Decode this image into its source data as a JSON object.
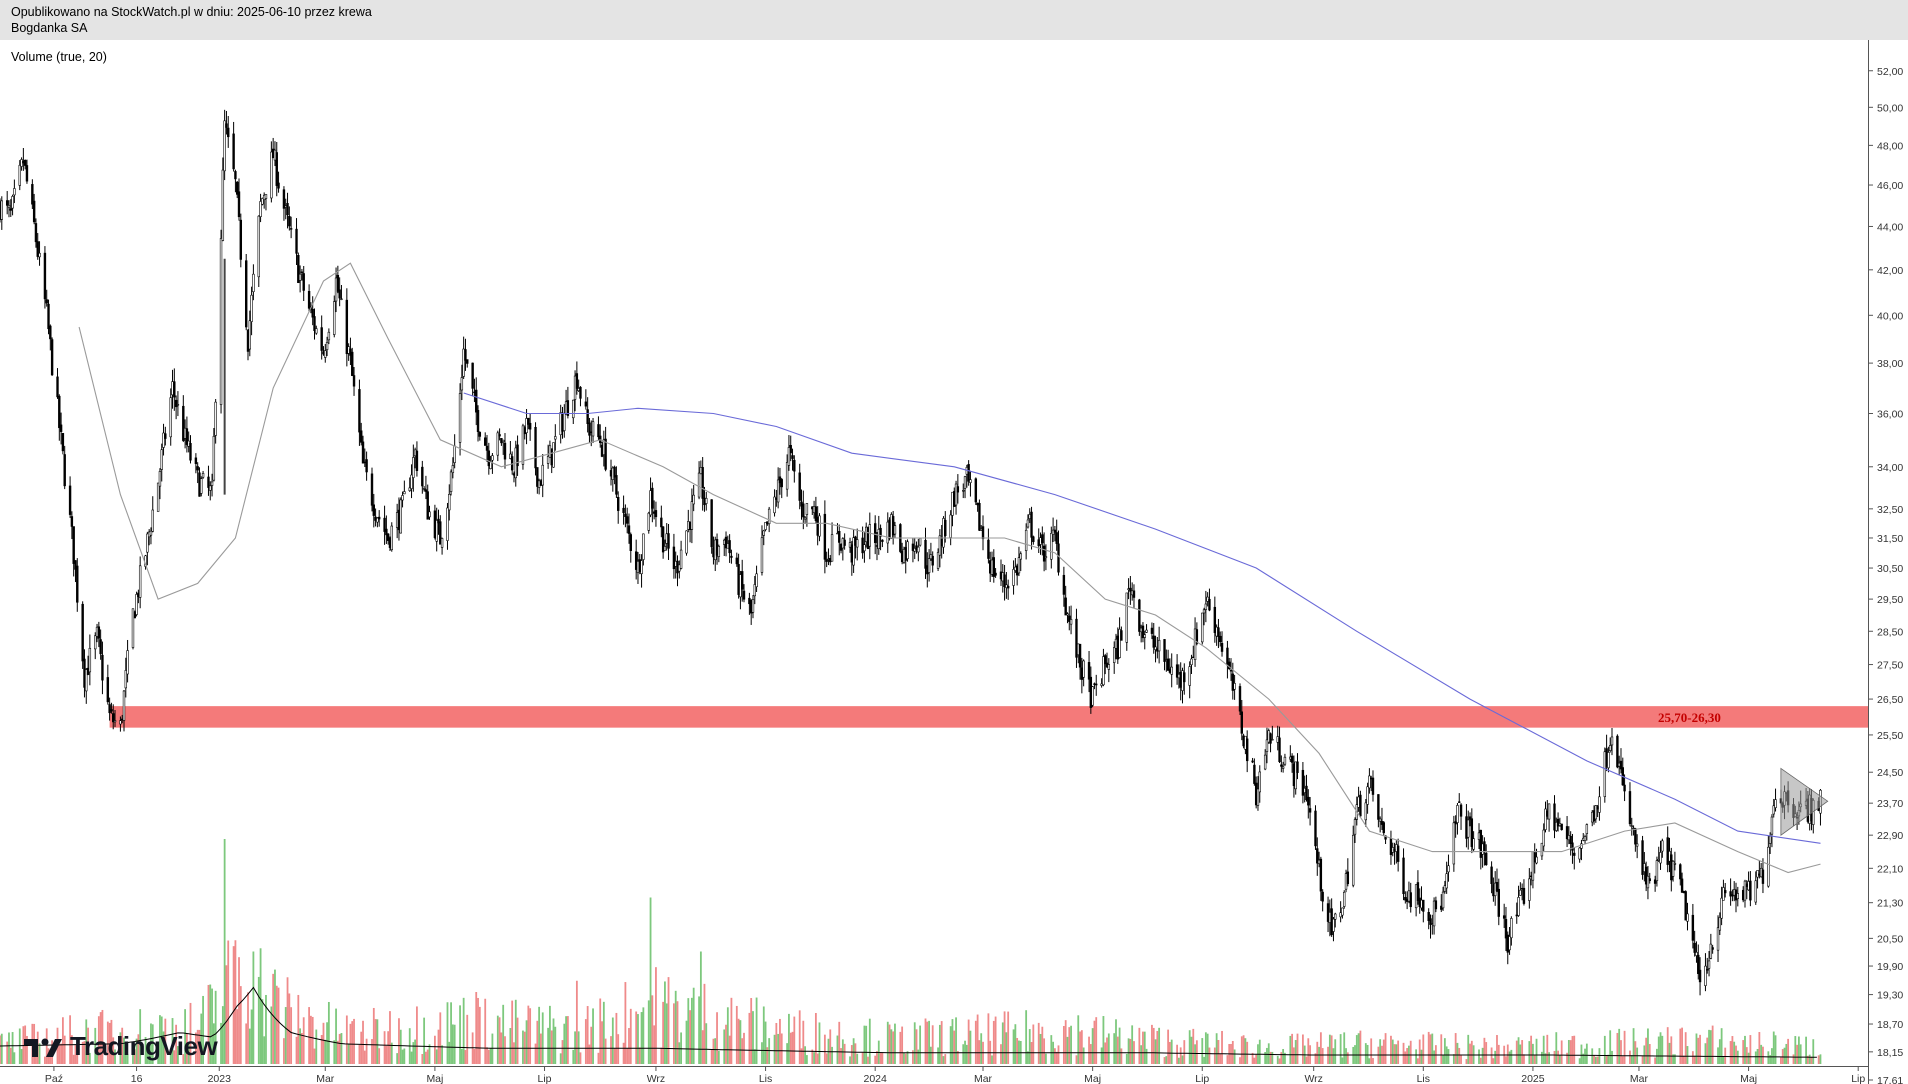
{
  "header": {
    "published": "Opublikowano na StockWatch.pl w dniu: 2025-06-10 przez krewa",
    "instrument": "Bogdanka SA"
  },
  "indicator_label": "Volume (true, 20)",
  "branding": {
    "logo_icon": "tradingview-logo-icon",
    "logo_text": "TradingView"
  },
  "colors": {
    "candle": "#000000",
    "ma_short": "#9a9a9a",
    "ma_long": "#6a6ad8",
    "zone": "#f47a7a",
    "zone_label": "#c40000",
    "vol_up": "#7dc87d",
    "vol_down": "#ef8a8a",
    "vol_ma": "#000000",
    "triangle": "#999999"
  },
  "chart_data": {
    "type": "candlestick",
    "scale": "log",
    "ylim": [
      17.61,
      53.0
    ],
    "y_ticks": [
      "52,00",
      "50,00",
      "48,00",
      "46,00",
      "44,00",
      "42,00",
      "40,00",
      "38,00",
      "36,00",
      "34,00",
      "32,50",
      "31,50",
      "30,50",
      "29,50",
      "28,50",
      "27,50",
      "26,50",
      "25,50",
      "24,50",
      "23,70",
      "22,90",
      "22,10",
      "21,30",
      "20,50",
      "19,90",
      "19,30",
      "18,70",
      "18,15",
      "17,61"
    ],
    "x_ticks": [
      "Paź",
      "16",
      "2023",
      "Mar",
      "Maj",
      "Lip",
      "Wrz",
      "Lis",
      "2024",
      "Mar",
      "Maj",
      "Lip",
      "Wrz",
      "Lis",
      "2025",
      "Mar",
      "Maj",
      "Lip"
    ],
    "x_range": [
      "2022-09-01",
      "2025-07-02"
    ],
    "price_path": [
      [
        "2022-09-01",
        45.0
      ],
      [
        "2022-09-07",
        44.5
      ],
      [
        "2022-09-14",
        47.2
      ],
      [
        "2022-09-20",
        44.0
      ],
      [
        "2022-09-27",
        40.0
      ],
      [
        "2022-10-04",
        35.5
      ],
      [
        "2022-10-12",
        31.0
      ],
      [
        "2022-10-18",
        27.2
      ],
      [
        "2022-10-25",
        28.3
      ],
      [
        "2022-11-01",
        26.0
      ],
      [
        "2022-11-07",
        25.7
      ],
      [
        "2022-11-14",
        29.0
      ],
      [
        "2022-11-21",
        31.0
      ],
      [
        "2022-11-28",
        33.5
      ],
      [
        "2022-12-06",
        37.0
      ],
      [
        "2022-12-13",
        35.0
      ],
      [
        "2022-12-20",
        33.5
      ],
      [
        "2022-12-28",
        33.0
      ],
      [
        "2023-01-04",
        49.0
      ],
      [
        "2023-01-10",
        46.0
      ],
      [
        "2023-01-17",
        39.0
      ],
      [
        "2023-01-24",
        45.0
      ],
      [
        "2023-01-31",
        47.5
      ],
      [
        "2023-02-07",
        44.5
      ],
      [
        "2023-02-14",
        42.0
      ],
      [
        "2023-02-21",
        40.0
      ],
      [
        "2023-02-28",
        38.5
      ],
      [
        "2023-03-07",
        41.5
      ],
      [
        "2023-03-15",
        38.0
      ],
      [
        "2023-03-22",
        34.0
      ],
      [
        "2023-03-29",
        32.5
      ],
      [
        "2023-04-05",
        31.5
      ],
      [
        "2023-04-13",
        32.5
      ],
      [
        "2023-04-20",
        34.5
      ],
      [
        "2023-04-27",
        32.5
      ],
      [
        "2023-05-04",
        31.5
      ],
      [
        "2023-05-11",
        34.0
      ],
      [
        "2023-05-17",
        38.5
      ],
      [
        "2023-05-24",
        36.0
      ],
      [
        "2023-05-31",
        34.5
      ],
      [
        "2023-06-07",
        35.0
      ],
      [
        "2023-06-14",
        34.0
      ],
      [
        "2023-06-21",
        35.5
      ],
      [
        "2023-06-28",
        33.5
      ],
      [
        "2023-07-05",
        34.5
      ],
      [
        "2023-07-12",
        36.0
      ],
      [
        "2023-07-19",
        37.5
      ],
      [
        "2023-07-25",
        35.5
      ],
      [
        "2023-08-01",
        35.0
      ],
      [
        "2023-08-08",
        33.5
      ],
      [
        "2023-08-15",
        32.0
      ],
      [
        "2023-08-22",
        30.5
      ],
      [
        "2023-08-29",
        33.0
      ],
      [
        "2023-09-05",
        31.5
      ],
      [
        "2023-09-12",
        30.5
      ],
      [
        "2023-09-19",
        32.0
      ],
      [
        "2023-09-26",
        33.5
      ],
      [
        "2023-10-03",
        31.0
      ],
      [
        "2023-10-10",
        31.5
      ],
      [
        "2023-10-17",
        30.0
      ],
      [
        "2023-10-24",
        29.0
      ],
      [
        "2023-10-31",
        31.5
      ],
      [
        "2023-11-07",
        33.0
      ],
      [
        "2023-11-14",
        34.5
      ],
      [
        "2023-11-21",
        32.5
      ],
      [
        "2023-11-28",
        32.5
      ],
      [
        "2023-12-05",
        31.0
      ],
      [
        "2023-12-12",
        31.5
      ],
      [
        "2023-12-19",
        31.0
      ],
      [
        "2023-12-27",
        31.5
      ],
      [
        "2024-01-03",
        31.5
      ],
      [
        "2024-01-10",
        32.0
      ],
      [
        "2024-01-17",
        31.0
      ],
      [
        "2024-01-24",
        31.5
      ],
      [
        "2024-01-31",
        30.5
      ],
      [
        "2024-02-07",
        31.5
      ],
      [
        "2024-02-14",
        33.0
      ],
      [
        "2024-02-21",
        33.5
      ],
      [
        "2024-02-28",
        32.0
      ],
      [
        "2024-03-06",
        30.5
      ],
      [
        "2024-03-13",
        30.0
      ],
      [
        "2024-03-20",
        30.5
      ],
      [
        "2024-03-27",
        32.0
      ],
      [
        "2024-04-03",
        31.0
      ],
      [
        "2024-04-10",
        31.5
      ],
      [
        "2024-04-17",
        29.0
      ],
      [
        "2024-04-24",
        27.5
      ],
      [
        "2024-05-01",
        26.5
      ],
      [
        "2024-05-08",
        27.5
      ],
      [
        "2024-05-15",
        28.0
      ],
      [
        "2024-05-22",
        30.0
      ],
      [
        "2024-05-29",
        28.5
      ],
      [
        "2024-06-05",
        28.0
      ],
      [
        "2024-06-12",
        27.5
      ],
      [
        "2024-06-19",
        27.0
      ],
      [
        "2024-06-26",
        28.0
      ],
      [
        "2024-07-03",
        29.5
      ],
      [
        "2024-07-10",
        28.5
      ],
      [
        "2024-07-17",
        27.0
      ],
      [
        "2024-07-24",
        25.5
      ],
      [
        "2024-07-31",
        24.0
      ],
      [
        "2024-08-07",
        25.5
      ],
      [
        "2024-08-14",
        25.0
      ],
      [
        "2024-08-21",
        24.5
      ],
      [
        "2024-08-28",
        24.0
      ],
      [
        "2024-09-04",
        22.0
      ],
      [
        "2024-09-11",
        20.6
      ],
      [
        "2024-09-18",
        21.5
      ],
      [
        "2024-09-25",
        23.5
      ],
      [
        "2024-10-02",
        24.2
      ],
      [
        "2024-10-09",
        23.0
      ],
      [
        "2024-10-16",
        22.5
      ],
      [
        "2024-10-23",
        21.5
      ],
      [
        "2024-10-30",
        21.5
      ],
      [
        "2024-11-06",
        21.0
      ],
      [
        "2024-11-13",
        21.5
      ],
      [
        "2024-11-20",
        23.5
      ],
      [
        "2024-11-27",
        23.0
      ],
      [
        "2024-12-04",
        22.5
      ],
      [
        "2024-12-11",
        21.5
      ],
      [
        "2024-12-18",
        20.5
      ],
      [
        "2024-12-27",
        21.5
      ],
      [
        "2025-01-03",
        22.5
      ],
      [
        "2025-01-10",
        23.5
      ],
      [
        "2025-01-17",
        23.0
      ],
      [
        "2025-01-24",
        22.5
      ],
      [
        "2025-01-31",
        23.0
      ],
      [
        "2025-02-07",
        24.0
      ],
      [
        "2025-02-14",
        25.8
      ],
      [
        "2025-02-21",
        23.8
      ],
      [
        "2025-02-28",
        22.5
      ],
      [
        "2025-03-07",
        21.5
      ],
      [
        "2025-03-14",
        22.5
      ],
      [
        "2025-03-21",
        22.0
      ],
      [
        "2025-03-28",
        21.0
      ],
      [
        "2025-04-04",
        19.5
      ],
      [
        "2025-04-11",
        20.5
      ],
      [
        "2025-04-18",
        21.5
      ],
      [
        "2025-04-25",
        21.5
      ],
      [
        "2025-05-02",
        21.5
      ],
      [
        "2025-05-09",
        22.0
      ],
      [
        "2025-05-16",
        24.0
      ],
      [
        "2025-05-23",
        23.8
      ],
      [
        "2025-05-30",
        23.5
      ],
      [
        "2025-06-06",
        23.6
      ],
      [
        "2025-06-10",
        23.8
      ]
    ],
    "ma_short_path": [
      [
        "2022-10-15",
        39.5
      ],
      [
        "2022-11-07",
        33.0
      ],
      [
        "2022-11-28",
        29.5
      ],
      [
        "2022-12-20",
        30.0
      ],
      [
        "2023-01-10",
        31.5
      ],
      [
        "2023-01-31",
        37.0
      ],
      [
        "2023-02-28",
        41.5
      ],
      [
        "2023-03-15",
        42.3
      ],
      [
        "2023-04-05",
        39.0
      ],
      [
        "2023-05-04",
        35.0
      ],
      [
        "2023-06-07",
        34.0
      ],
      [
        "2023-07-05",
        34.5
      ],
      [
        "2023-08-01",
        35.0
      ],
      [
        "2023-09-05",
        34.0
      ],
      [
        "2023-10-03",
        33.0
      ],
      [
        "2023-11-07",
        32.0
      ],
      [
        "2023-12-05",
        32.0
      ],
      [
        "2024-01-10",
        31.5
      ],
      [
        "2024-02-14",
        31.5
      ],
      [
        "2024-03-13",
        31.5
      ],
      [
        "2024-04-10",
        31.0
      ],
      [
        "2024-05-08",
        29.5
      ],
      [
        "2024-06-05",
        29.0
      ],
      [
        "2024-07-03",
        28.0
      ],
      [
        "2024-08-07",
        26.5
      ],
      [
        "2024-09-04",
        25.0
      ],
      [
        "2024-10-02",
        23.0
      ],
      [
        "2024-11-06",
        22.5
      ],
      [
        "2024-12-11",
        22.5
      ],
      [
        "2025-01-17",
        22.5
      ],
      [
        "2025-02-21",
        23.0
      ],
      [
        "2025-03-21",
        23.2
      ],
      [
        "2025-04-25",
        22.5
      ],
      [
        "2025-05-23",
        22.0
      ],
      [
        "2025-06-10",
        22.2
      ]
    ],
    "ma_long_path": [
      [
        "2023-05-17",
        36.8
      ],
      [
        "2023-06-21",
        36.0
      ],
      [
        "2023-07-25",
        36.0
      ],
      [
        "2023-08-22",
        36.2
      ],
      [
        "2023-10-03",
        36.0
      ],
      [
        "2023-11-07",
        35.5
      ],
      [
        "2023-12-19",
        34.5
      ],
      [
        "2024-02-14",
        34.0
      ],
      [
        "2024-04-10",
        33.0
      ],
      [
        "2024-06-05",
        31.8
      ],
      [
        "2024-07-31",
        30.5
      ],
      [
        "2024-09-25",
        28.5
      ],
      [
        "2024-11-27",
        26.5
      ],
      [
        "2025-01-31",
        24.8
      ],
      [
        "2025-03-21",
        23.8
      ],
      [
        "2025-04-25",
        23.0
      ],
      [
        "2025-06-10",
        22.7
      ]
    ],
    "zone": {
      "low": 25.7,
      "high": 26.3,
      "label": "25,70-26,30",
      "from": "2022-11-01",
      "to": "2025-07-02"
    },
    "triangle": {
      "from": "2025-05-19",
      "to": "2025-06-14",
      "top": 24.6,
      "bottom": 22.9,
      "apex": 23.75
    },
    "volume_relative_path": [
      [
        "2022-09-01",
        0.12
      ],
      [
        "2022-10-15",
        0.18
      ],
      [
        "2022-11-15",
        0.2
      ],
      [
        "2022-12-20",
        0.22
      ],
      [
        "2023-01-04",
        0.45
      ],
      [
        "2023-01-20",
        0.5
      ],
      [
        "2023-02-10",
        0.3
      ],
      [
        "2023-03-15",
        0.18
      ],
      [
        "2023-05-17",
        0.25
      ],
      [
        "2023-07-19",
        0.2
      ],
      [
        "2023-08-29",
        0.35
      ],
      [
        "2023-09-26",
        0.3
      ],
      [
        "2023-11-14",
        0.2
      ],
      [
        "2024-01-10",
        0.15
      ],
      [
        "2024-03-13",
        0.18
      ],
      [
        "2024-04-17",
        0.2
      ],
      [
        "2024-06-05",
        0.14
      ],
      [
        "2024-08-07",
        0.1
      ],
      [
        "2024-10-02",
        0.12
      ],
      [
        "2024-12-11",
        0.1
      ],
      [
        "2025-02-14",
        0.12
      ],
      [
        "2025-04-04",
        0.14
      ],
      [
        "2025-06-10",
        0.1
      ]
    ],
    "volume_ma_relative_path": [
      [
        "2022-09-01",
        0.08
      ],
      [
        "2022-11-07",
        0.09
      ],
      [
        "2022-12-10",
        0.14
      ],
      [
        "2022-12-28",
        0.12
      ],
      [
        "2023-01-10",
        0.25
      ],
      [
        "2023-01-20",
        0.34
      ],
      [
        "2023-02-10",
        0.14
      ],
      [
        "2023-03-10",
        0.09
      ],
      [
        "2023-06-01",
        0.07
      ],
      [
        "2023-09-01",
        0.07
      ],
      [
        "2024-01-10",
        0.05
      ],
      [
        "2024-06-01",
        0.05
      ],
      [
        "2024-09-01",
        0.04
      ],
      [
        "2025-01-10",
        0.04
      ],
      [
        "2025-06-10",
        0.03
      ]
    ],
    "volume_spikes": [
      [
        "2023-01-04",
        1.0
      ],
      [
        "2023-01-10",
        0.55
      ],
      [
        "2023-01-20",
        0.5
      ],
      [
        "2023-08-29",
        0.74
      ],
      [
        "2023-09-26",
        0.5
      ],
      [
        "2023-05-24",
        0.32
      ],
      [
        "2023-07-19",
        0.37
      ]
    ]
  }
}
